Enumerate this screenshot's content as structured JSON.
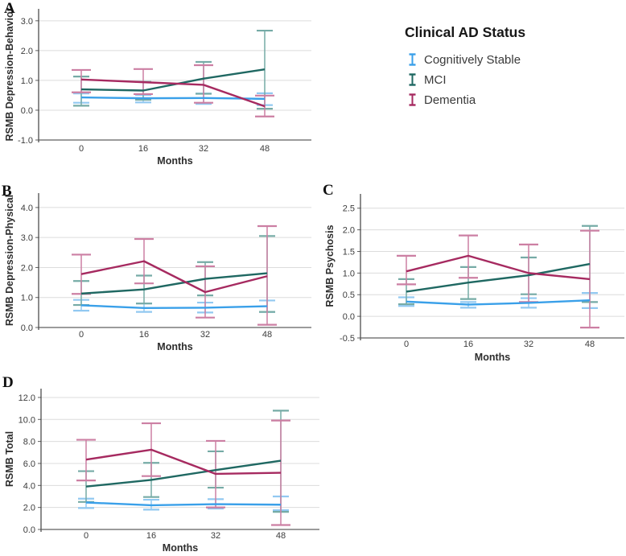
{
  "legend": {
    "title": "Clinical AD Status",
    "items": [
      {
        "label": "Cognitively Stable",
        "color": "#3AA0E9",
        "error_color": "#92C9F1"
      },
      {
        "label": "MCI",
        "color": "#1F6862",
        "error_color": "#76ABA6"
      },
      {
        "label": "Dementia",
        "color": "#A62A60",
        "error_color": "#CC7FA3"
      }
    ]
  },
  "chart_data": [
    {
      "id": "A",
      "panel_label": "A",
      "type": "line",
      "title": "",
      "xlabel": "Months",
      "ylabel": "RSMB Depression-Behavior",
      "x_tick_labels": [
        "0",
        "16",
        "32",
        "48"
      ],
      "yticks": [
        3,
        2,
        1,
        0,
        -1
      ],
      "y_tick_labels": [
        "3.0",
        "2.0",
        "1.0",
        "0.0",
        "-1.0"
      ],
      "ylim": [
        -1.0,
        3.0
      ],
      "grid": "horizontal",
      "legend_position": "outside-right",
      "series": [
        {
          "name": "Cognitively Stable",
          "values": [
            0.43,
            0.4,
            0.41,
            0.38
          ],
          "err_low": [
            0.25,
            0.26,
            0.21,
            0.17
          ],
          "err_high": [
            0.56,
            0.51,
            0.56,
            0.57
          ]
        },
        {
          "name": "MCI",
          "values": [
            0.7,
            0.66,
            1.06,
            1.37
          ],
          "err_low": [
            0.15,
            0.35,
            0.55,
            0.05
          ],
          "err_high": [
            1.13,
            0.95,
            1.62,
            2.67
          ]
        },
        {
          "name": "Dementia",
          "values": [
            1.03,
            0.94,
            0.85,
            0.13
          ],
          "err_low": [
            0.6,
            0.54,
            0.25,
            -0.21
          ],
          "err_high": [
            1.35,
            1.38,
            1.51,
            0.49
          ]
        }
      ]
    },
    {
      "id": "B",
      "panel_label": "B",
      "type": "line",
      "title": "",
      "xlabel": "Months",
      "ylabel": "RSMB Depression-Physical",
      "x_tick_labels": [
        "0",
        "16",
        "32",
        "48"
      ],
      "yticks": [
        4,
        3,
        2,
        1,
        0
      ],
      "y_tick_labels": [
        "4.0",
        "3.0",
        "2.0",
        "1.0",
        "0.0"
      ],
      "ylim": [
        0.0,
        4.0
      ],
      "grid": "horizontal",
      "series": [
        {
          "name": "Cognitively Stable",
          "values": [
            0.74,
            0.65,
            0.66,
            0.71
          ],
          "err_low": [
            0.56,
            0.52,
            0.5,
            0.52
          ],
          "err_high": [
            0.92,
            0.8,
            0.83,
            0.9
          ]
        },
        {
          "name": "MCI",
          "values": [
            1.13,
            1.27,
            1.62,
            1.81
          ],
          "err_low": [
            0.75,
            0.8,
            1.07,
            0.52
          ],
          "err_high": [
            1.55,
            1.73,
            2.18,
            3.05
          ]
        },
        {
          "name": "Dementia",
          "values": [
            1.78,
            2.21,
            1.18,
            1.71
          ],
          "err_low": [
            1.12,
            1.47,
            0.33,
            0.09
          ],
          "err_high": [
            2.43,
            2.95,
            2.04,
            3.38
          ]
        }
      ]
    },
    {
      "id": "C",
      "panel_label": "C",
      "type": "line",
      "title": "",
      "xlabel": "Months",
      "ylabel": "RSMB Psychosis",
      "x_tick_labels": [
        "0",
        "16",
        "32",
        "48"
      ],
      "yticks": [
        2.5,
        2.0,
        1.5,
        1.0,
        0.5,
        0.0,
        -0.5
      ],
      "y_tick_labels": [
        "2.5",
        "2.0",
        "1.5",
        "1.0",
        "0.5",
        "0.0",
        "-0.5"
      ],
      "ylim": [
        -0.5,
        2.5
      ],
      "grid": "horizontal",
      "series": [
        {
          "name": "Cognitively Stable",
          "values": [
            0.34,
            0.27,
            0.31,
            0.37
          ],
          "err_low": [
            0.24,
            0.2,
            0.2,
            0.19
          ],
          "err_high": [
            0.44,
            0.33,
            0.42,
            0.54
          ]
        },
        {
          "name": "MCI",
          "values": [
            0.57,
            0.78,
            0.95,
            1.21
          ],
          "err_low": [
            0.28,
            0.4,
            0.51,
            0.33
          ],
          "err_high": [
            0.86,
            1.14,
            1.36,
            2.09
          ]
        },
        {
          "name": "Dementia",
          "values": [
            1.04,
            1.4,
            1.0,
            0.86
          ],
          "err_low": [
            0.74,
            0.89,
            0.33,
            -0.26
          ],
          "err_high": [
            1.4,
            1.87,
            1.66,
            1.98
          ]
        }
      ]
    },
    {
      "id": "D",
      "panel_label": "D",
      "type": "line",
      "title": "",
      "xlabel": "Months",
      "ylabel": "RSMB Total",
      "x_tick_labels": [
        "0",
        "16",
        "32",
        "48"
      ],
      "yticks": [
        12,
        10,
        8,
        6,
        4,
        2,
        0
      ],
      "y_tick_labels": [
        "12.0",
        "10.0",
        "8.0",
        "6.0",
        "4.0",
        "2.0",
        "0.0"
      ],
      "ylim": [
        0.0,
        12.0
      ],
      "grid": "horizontal",
      "series": [
        {
          "name": "Cognitively Stable",
          "values": [
            2.45,
            2.2,
            2.3,
            2.25
          ],
          "err_low": [
            1.95,
            1.8,
            1.9,
            1.75
          ],
          "err_high": [
            2.8,
            2.7,
            2.75,
            3.0
          ]
        },
        {
          "name": "MCI",
          "values": [
            3.9,
            4.5,
            5.4,
            6.25
          ],
          "err_low": [
            2.5,
            2.95,
            3.8,
            1.6
          ],
          "err_high": [
            5.3,
            6.05,
            7.1,
            10.8
          ]
        },
        {
          "name": "Dementia",
          "values": [
            6.35,
            7.25,
            5.05,
            5.15
          ],
          "err_low": [
            4.45,
            4.85,
            2.0,
            0.4
          ],
          "err_high": [
            8.15,
            9.65,
            8.05,
            9.9
          ]
        }
      ]
    }
  ]
}
